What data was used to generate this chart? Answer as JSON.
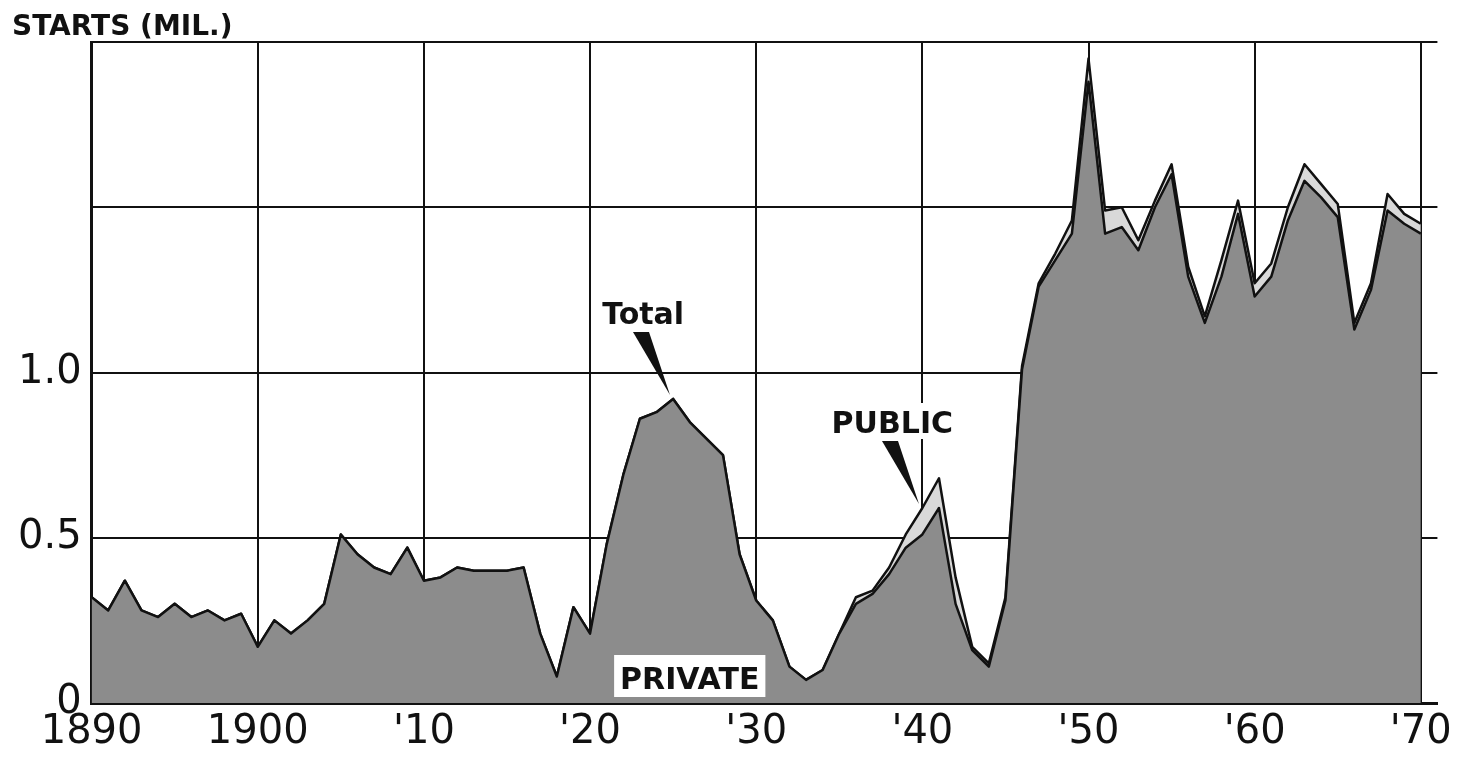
{
  "chart_data": {
    "type": "area",
    "stacked": true,
    "ylabel": "STARTS (MIL.)",
    "x": [
      1890,
      1891,
      1892,
      1893,
      1894,
      1895,
      1896,
      1897,
      1898,
      1899,
      1900,
      1901,
      1902,
      1903,
      1904,
      1905,
      1906,
      1907,
      1908,
      1909,
      1910,
      1911,
      1912,
      1913,
      1914,
      1915,
      1916,
      1917,
      1918,
      1919,
      1920,
      1921,
      1922,
      1923,
      1924,
      1925,
      1926,
      1927,
      1928,
      1929,
      1930,
      1931,
      1932,
      1933,
      1934,
      1935,
      1936,
      1937,
      1938,
      1939,
      1940,
      1941,
      1942,
      1943,
      1944,
      1945,
      1946,
      1947,
      1948,
      1949,
      1950,
      1951,
      1952,
      1953,
      1954,
      1955,
      1956,
      1957,
      1958,
      1959,
      1960,
      1961,
      1962,
      1963,
      1964,
      1965,
      1966,
      1967,
      1968,
      1969,
      1970
    ],
    "series": [
      {
        "color": "#8c8c8c",
        "values": [
          0.32,
          0.28,
          0.37,
          0.28,
          0.26,
          0.3,
          0.26,
          0.28,
          0.25,
          0.27,
          0.17,
          0.25,
          0.21,
          0.25,
          0.3,
          0.51,
          0.45,
          0.41,
          0.39,
          0.47,
          0.37,
          0.38,
          0.41,
          0.4,
          0.4,
          0.4,
          0.41,
          0.21,
          0.08,
          0.29,
          0.21,
          0.48,
          0.69,
          0.86,
          0.88,
          0.92,
          0.85,
          0.8,
          0.75,
          0.45,
          0.31,
          0.25,
          0.11,
          0.07,
          0.1,
          0.21,
          0.3,
          0.33,
          0.39,
          0.47,
          0.51,
          0.59,
          0.3,
          0.16,
          0.11,
          0.31,
          1.01,
          1.26,
          1.34,
          1.42,
          1.88,
          1.42,
          1.44,
          1.37,
          1.5,
          1.6,
          1.29,
          1.15,
          1.29,
          1.48,
          1.23,
          1.29,
          1.46,
          1.58,
          1.53,
          1.47,
          1.13,
          1.25,
          1.49,
          1.45,
          1.42
        ]
      },
      {
        "color": "#d9d9d9",
        "values": [
          0,
          0,
          0,
          0,
          0,
          0,
          0,
          0,
          0,
          0,
          0,
          0,
          0,
          0,
          0,
          0,
          0,
          0,
          0,
          0,
          0,
          0,
          0,
          0,
          0,
          0,
          0,
          0,
          0,
          0,
          0,
          0,
          0,
          0,
          0,
          0,
          0,
          0,
          0,
          0,
          0,
          0,
          0,
          0,
          0,
          0,
          0.02,
          0.01,
          0.02,
          0.04,
          0.08,
          0.09,
          0.08,
          0.01,
          0.01,
          0.01,
          0.01,
          0.01,
          0.02,
          0.04,
          0.07,
          0.07,
          0.06,
          0.03,
          0.02,
          0.03,
          0.03,
          0.02,
          0.05,
          0.04,
          0.04,
          0.04,
          0.04,
          0.05,
          0.04,
          0.04,
          0.02,
          0.02,
          0.05,
          0.03,
          0.03
        ]
      }
    ],
    "xlim": [
      1890,
      1971
    ],
    "xticks": [
      1890,
      1900,
      {
        "value": 1910,
        "label": "'10"
      },
      {
        "value": 1920,
        "label": "'20"
      },
      {
        "value": 1930,
        "label": "'30"
      },
      {
        "value": 1940,
        "label": "'40"
      },
      {
        "value": 1950,
        "label": "'50"
      },
      {
        "value": 1960,
        "label": "'60"
      },
      {
        "value": 1970,
        "label": "'70"
      }
    ],
    "ylim": [
      0,
      2
    ],
    "yticks": [
      0,
      0.5,
      {
        "value": 1,
        "label": "1.0"
      },
      {
        "value": 1.5,
        "label": null
      },
      {
        "value": 2,
        "label": null
      }
    ],
    "grid": true,
    "legend": false,
    "annotations": [
      {
        "text": "Total",
        "x": 1925,
        "y": 0.92
      },
      {
        "text": "PUBLIC",
        "x": 1940,
        "y": 0.59
      },
      "PRIVATE"
    ]
  }
}
